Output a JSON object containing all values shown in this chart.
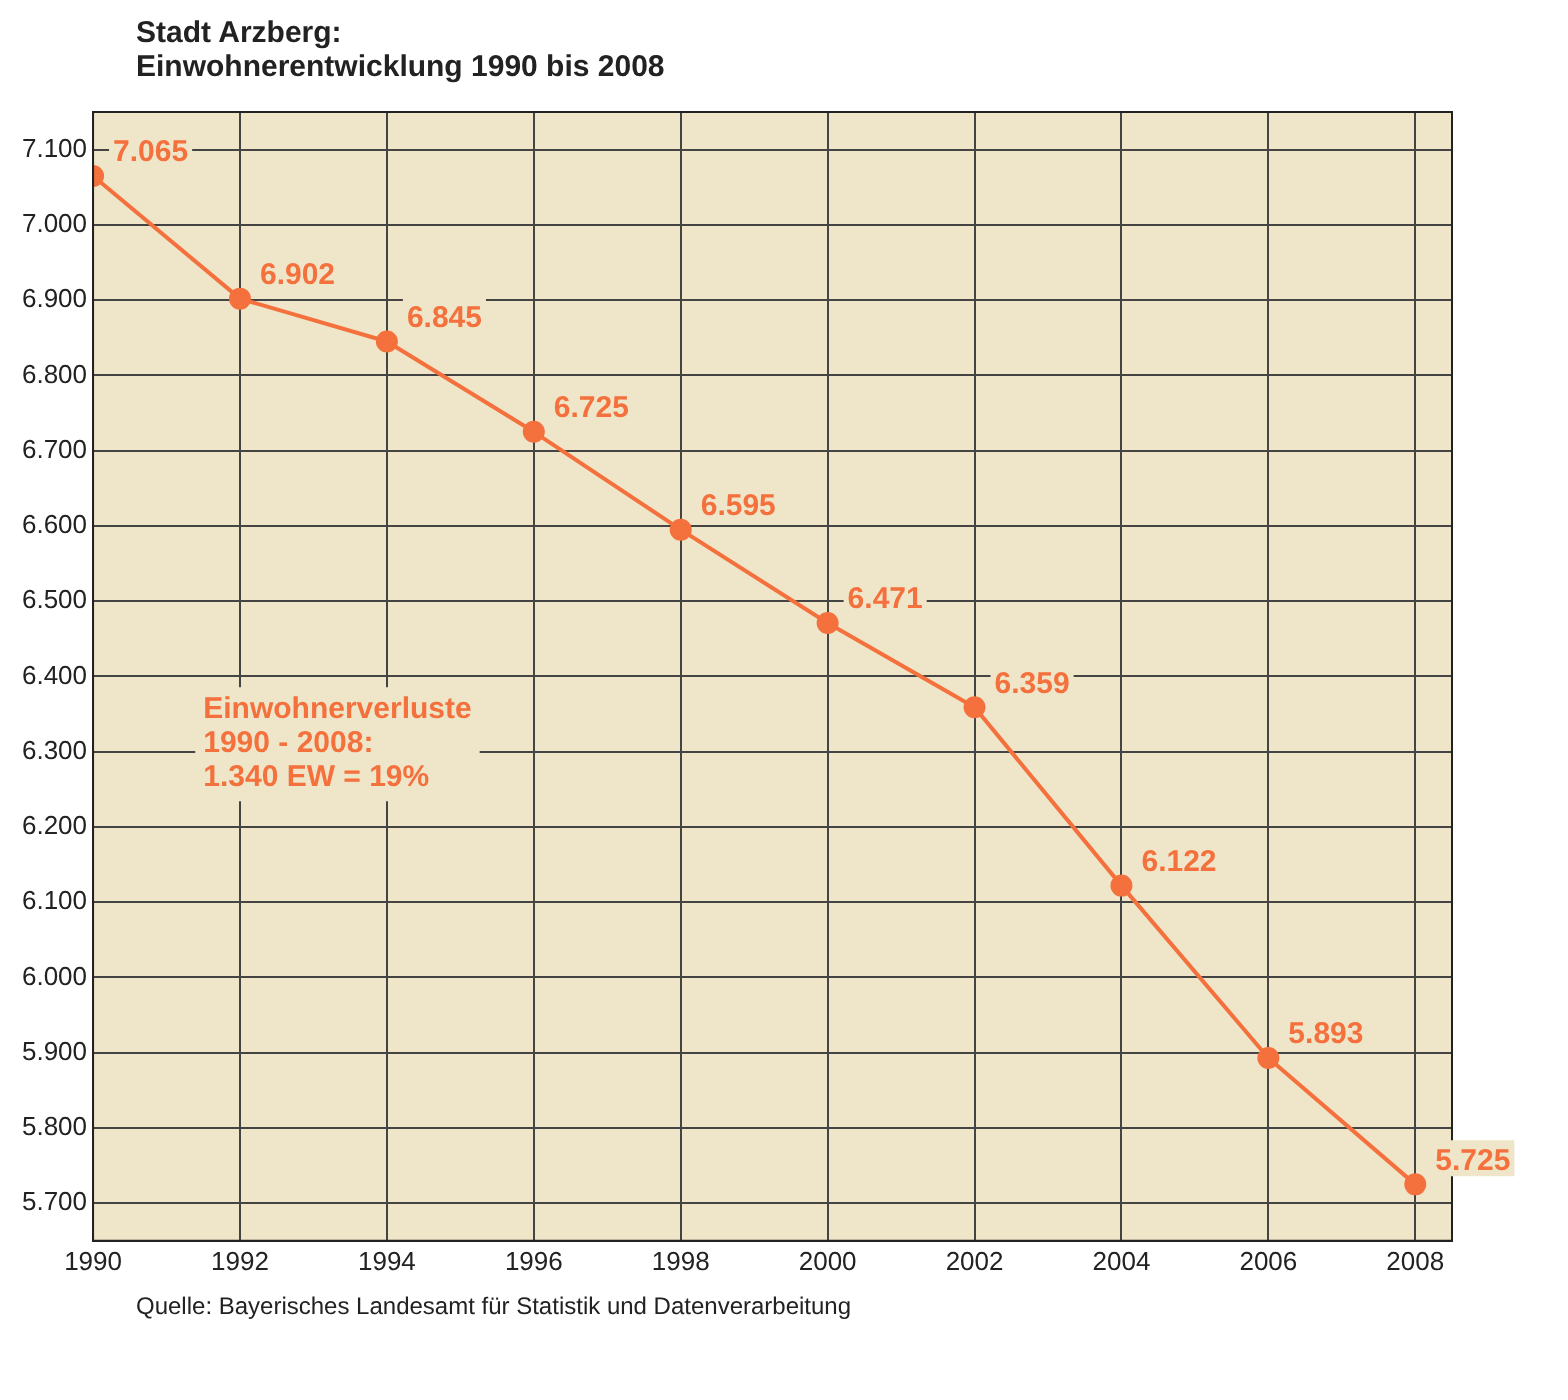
{
  "chart_data": {
    "type": "line",
    "title": "Stadt Arzberg:",
    "subtitle": "Einwohnerentwicklung 1990 bis 2008",
    "x": [
      1990,
      1992,
      1994,
      1996,
      1998,
      2000,
      2002,
      2004,
      2006,
      2008
    ],
    "series": [
      {
        "color": "#f4703c",
        "values": [
          7065,
          6902,
          6845,
          6725,
          6595,
          6471,
          6359,
          6122,
          5893,
          5725
        ],
        "value_labels": [
          "7.065",
          "6.902",
          "6.845",
          "6.725",
          "6.595",
          "6.471",
          "6.359",
          "6.122",
          "5.893",
          "5.725"
        ]
      }
    ],
    "xlim": [
      1990,
      2008.5
    ],
    "xticks": [
      1990,
      1992,
      1994,
      1996,
      1998,
      2000,
      2002,
      2004,
      2006,
      2008
    ],
    "ylim": [
      5650,
      7150
    ],
    "yticks": [
      {
        "value": 5700,
        "label": "5.700"
      },
      {
        "value": 5800,
        "label": "5.800"
      },
      {
        "value": 5900,
        "label": "5.900"
      },
      {
        "value": 6000,
        "label": "6.000"
      },
      {
        "value": 6100,
        "label": "6.100"
      },
      {
        "value": 6200,
        "label": "6.200"
      },
      {
        "value": 6300,
        "label": "6.300"
      },
      {
        "value": 6400,
        "label": "6.400"
      },
      {
        "value": 6500,
        "label": "6.500"
      },
      {
        "value": 6600,
        "label": "6.600"
      },
      {
        "value": 6700,
        "label": "6.700"
      },
      {
        "value": 6800,
        "label": "6.800"
      },
      {
        "value": 6900,
        "label": "6.900"
      },
      {
        "value": 7000,
        "label": "7.000"
      },
      {
        "value": 7100,
        "label": "7.100"
      }
    ],
    "grid": true,
    "legend": false,
    "marker": "circle",
    "line_style": "solid",
    "annotations": [
      "Einwohnerverluste\n1990 - 2008:\n1.340 EW = 19%",
      "Quelle: Bayerisches Landesamt für Statistik und Datenverarbeitung"
    ]
  }
}
